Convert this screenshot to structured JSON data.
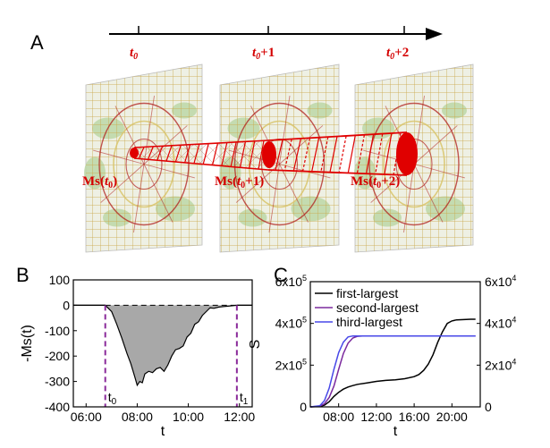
{
  "panels": {
    "a": {
      "label": "A",
      "timeline": {
        "ticks": [
          {
            "base": "t",
            "sub": "0",
            "suffix": ""
          },
          {
            "base": "t",
            "sub": "0",
            "suffix": "+1"
          },
          {
            "base": "t",
            "sub": "0",
            "suffix": "+2"
          }
        ]
      },
      "clusters": [
        {
          "base": "Ms(",
          "t": "t",
          "sub": "0",
          "suffix": ")"
        },
        {
          "base": "Ms(",
          "t": "t",
          "sub": "0",
          "suffix": "+1)"
        },
        {
          "base": "Ms(",
          "t": "t",
          "sub": "0",
          "suffix": "+2)"
        }
      ],
      "colors": {
        "accent": "#e00000",
        "map_bg": "#eef0e4",
        "park": "#b9d6a3",
        "road": "#d8c46a",
        "line": "#b0201e"
      }
    },
    "b": {
      "label": "B"
    },
    "c": {
      "label": "C"
    }
  },
  "chart_data": [
    {
      "type": "area",
      "panel": "B",
      "xlabel": "t",
      "ylabel": "-Ms(t)",
      "xlim": [
        5.5,
        12.5
      ],
      "ylim": [
        -400,
        100
      ],
      "xticks": [
        6,
        8,
        10,
        12
      ],
      "xtick_labels": [
        "06:00",
        "08:00",
        "10:00",
        "12:00"
      ],
      "yticks": [
        100,
        0,
        -100,
        -200,
        -300,
        -400
      ],
      "ytick_labels": [
        "100",
        "0",
        "-100",
        "-200",
        "-300",
        "-400"
      ],
      "markers": [
        {
          "x": 6.75,
          "label_base": "t",
          "label_sub": "0"
        },
        {
          "x": 11.9,
          "label_base": "t",
          "label_sub": "1"
        }
      ],
      "series": [
        {
          "name": "-Ms(t)",
          "x": [
            5.5,
            6.75,
            7.0,
            7.2,
            7.4,
            7.6,
            7.75,
            7.9,
            8.0,
            8.1,
            8.2,
            8.3,
            8.45,
            8.6,
            8.75,
            8.9,
            9.05,
            9.2,
            9.35,
            9.5,
            9.65,
            9.8,
            9.95,
            10.1,
            10.25,
            10.4,
            10.55,
            10.7,
            10.85,
            11.0,
            11.2,
            11.4,
            11.6,
            11.9,
            12.5
          ],
          "y": [
            0,
            0,
            -25,
            -75,
            -130,
            -190,
            -230,
            -280,
            -315,
            -300,
            -305,
            -270,
            -260,
            -265,
            -250,
            -245,
            -260,
            -235,
            -200,
            -175,
            -170,
            -160,
            -125,
            -110,
            -75,
            -65,
            -40,
            -25,
            -10,
            -12,
            -7,
            -5,
            -3,
            0,
            0
          ]
        }
      ]
    },
    {
      "type": "line",
      "panel": "C",
      "xlabel": "t",
      "ylabel": "S",
      "xlim": [
        5.0,
        23.0
      ],
      "ylim_left": [
        0,
        600000
      ],
      "ylim_right": [
        0,
        60000
      ],
      "xticks": [
        8,
        12,
        16,
        20
      ],
      "xtick_labels": [
        "08:00",
        "12:00",
        "16:00",
        "20:00"
      ],
      "yticks_left": [
        {
          "value": 0,
          "base": "0",
          "exp": ""
        },
        {
          "value": 200000,
          "base": "2x10",
          "exp": "5"
        },
        {
          "value": 400000,
          "base": "4x10",
          "exp": "5"
        },
        {
          "value": 600000,
          "base": "6x10",
          "exp": "5"
        }
      ],
      "yticks_right": [
        {
          "value": 0,
          "base": "0",
          "exp": ""
        },
        {
          "value": 20000,
          "base": "2x10",
          "exp": "4"
        },
        {
          "value": 40000,
          "base": "4x10",
          "exp": "4"
        },
        {
          "value": 60000,
          "base": "6x10",
          "exp": "4"
        }
      ],
      "legend": "top-left",
      "series": [
        {
          "name": "first-largest",
          "color": "#000000",
          "axis": "left",
          "x": [
            5.0,
            6.0,
            6.5,
            7.0,
            7.5,
            8.0,
            8.5,
            9.0,
            9.5,
            10.0,
            11.0,
            12.0,
            13.0,
            14.0,
            15.0,
            16.0,
            16.5,
            17.0,
            17.5,
            18.0,
            18.5,
            19.0,
            19.5,
            20.0,
            20.5,
            21.0,
            22.0,
            22.5
          ],
          "y": [
            0,
            2000,
            8000,
            25000,
            50000,
            70000,
            85000,
            95000,
            102000,
            108000,
            115000,
            122000,
            127000,
            130000,
            135000,
            145000,
            155000,
            175000,
            205000,
            250000,
            310000,
            360000,
            400000,
            412000,
            417000,
            418000,
            420000,
            420000
          ]
        },
        {
          "name": "second-largest",
          "color": "#7b2a9e",
          "axis": "right",
          "x": [
            5.0,
            6.0,
            6.5,
            7.0,
            7.5,
            8.0,
            8.5,
            9.0,
            9.5,
            10.0,
            10.5,
            11.0,
            12.0,
            22.5
          ],
          "y": [
            0,
            300,
            1500,
            4500,
            10000,
            18000,
            25500,
            30500,
            33000,
            33800,
            34000,
            34000,
            34000,
            34000
          ]
        },
        {
          "name": "third-largest",
          "color": "#4848e8",
          "axis": "right",
          "x": [
            5.0,
            6.0,
            6.5,
            7.0,
            7.5,
            8.0,
            8.5,
            9.0,
            9.5,
            10.0,
            10.5,
            12.0,
            22.5
          ],
          "y": [
            0,
            500,
            3000,
            9000,
            18000,
            26000,
            31000,
            33500,
            34000,
            34000,
            34000,
            34000,
            34000
          ]
        }
      ]
    }
  ]
}
